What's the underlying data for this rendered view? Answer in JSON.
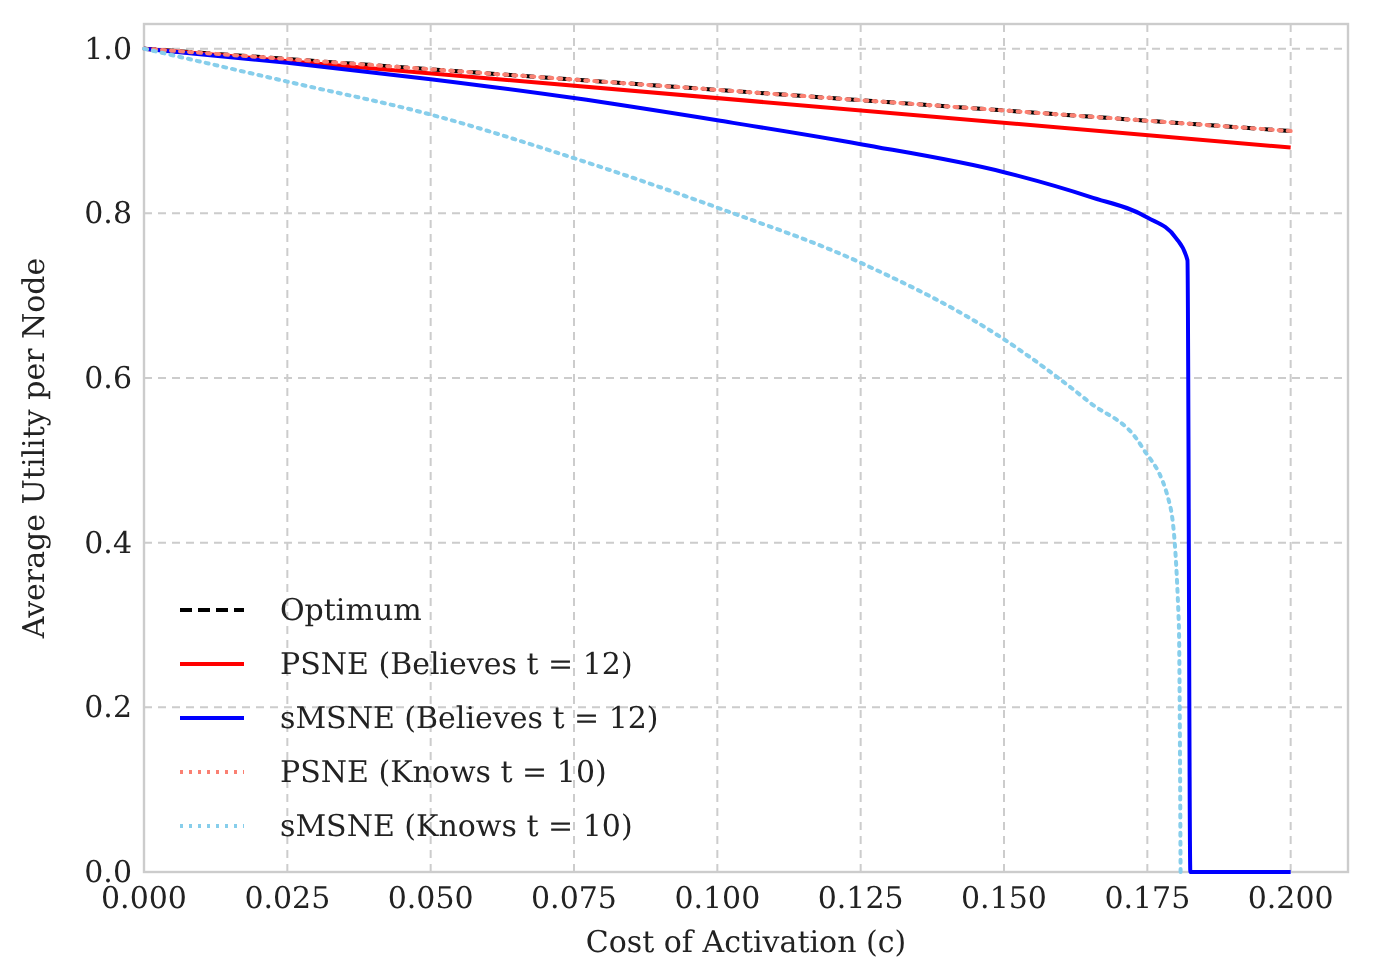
{
  "chart_data": {
    "type": "line",
    "xlabel": "Cost of Activation (c)",
    "ylabel": "Average Utility per Node",
    "xlim": [
      0,
      0.21
    ],
    "ylim": [
      0,
      1.03
    ],
    "xticks": [
      {
        "value": 0,
        "label": "0.000"
      },
      0.025,
      {
        "value": 0.05,
        "label": "0.050"
      },
      0.075,
      {
        "value": 0.1,
        "label": "0.100"
      },
      0.125,
      {
        "value": 0.15,
        "label": "0.150"
      },
      0.175,
      {
        "value": 0.2,
        "label": "0.200"
      }
    ],
    "yticks": [
      {
        "value": 0,
        "label": "0.0"
      },
      0.2,
      0.4,
      0.6,
      0.8,
      {
        "value": 1,
        "label": "1.0"
      }
    ],
    "grid": true,
    "legend": "bottom left",
    "series": [
      {
        "name": "Optimum",
        "color": "#000000",
        "line_style": "dashed",
        "x": [
          0,
          0.2
        ],
        "values": [
          1,
          0.9
        ]
      },
      {
        "name": "PSNE (Believes t = 12)",
        "color": "#ff0000",
        "line_style": "solid",
        "x": [
          0,
          0.2
        ],
        "values": [
          1,
          0.88
        ]
      },
      {
        "name": "sMSNE (Believes t = 12)",
        "color": "#0000ff",
        "line_style": "solid",
        "x": [
          0,
          0.025,
          0.05,
          0.075,
          0.1,
          0.125,
          0.15,
          0.165,
          0.175,
          0.18,
          0.182,
          0.1825,
          0.2
        ],
        "values": [
          1,
          0.983,
          0.963,
          0.94,
          0.913,
          0.884,
          0.85,
          0.82,
          0.795,
          0.77,
          0.743,
          0,
          0
        ]
      },
      {
        "name": "PSNE (Knows t = 10)",
        "color": "#fa8072",
        "line_style": "dotted",
        "x": [
          0,
          0.2
        ],
        "values": [
          1,
          0.9
        ]
      },
      {
        "name": "sMSNE (Knows t = 10)",
        "color": "#87ceeb",
        "line_style": "dotted",
        "x": [
          0,
          0.025,
          0.05,
          0.075,
          0.1,
          0.125,
          0.15,
          0.165,
          0.174,
          0.179,
          0.1805,
          0.1808
        ],
        "values": [
          1,
          0.96,
          0.92,
          0.867,
          0.807,
          0.74,
          0.647,
          0.57,
          0.517,
          0.444,
          0.3,
          0
        ]
      }
    ]
  }
}
